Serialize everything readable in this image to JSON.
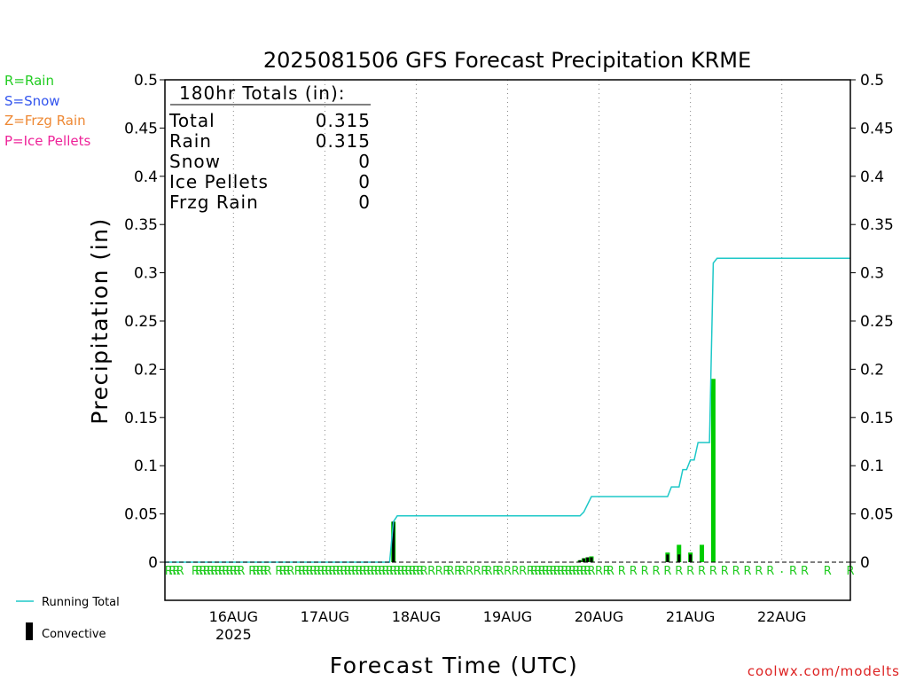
{
  "chart_data": {
    "type": "bar",
    "title": "2025081506 GFS Forecast Precipitation KRME",
    "xlabel": "Forecast Time (UTC)",
    "ylabel": "Precipitation (in)",
    "ylim": [
      0,
      0.5
    ],
    "yticks": [
      0,
      0.05,
      0.1,
      0.15,
      0.2,
      0.25,
      0.3,
      0.35,
      0.4,
      0.45,
      0.5
    ],
    "ytick_labels": [
      "0",
      "0.05",
      "0.1",
      "0.15",
      "0.2",
      "0.25",
      "0.3",
      "0.35",
      "0.4",
      "0.45",
      "0.5"
    ],
    "xlim": [
      0,
      180
    ],
    "xtick_labels": [
      {
        "label": "16AUG",
        "sublabel": "2025",
        "hour": 18
      },
      {
        "label": "17AUG",
        "hour": 42
      },
      {
        "label": "18AUG",
        "hour": 66
      },
      {
        "label": "19AUG",
        "hour": 90
      },
      {
        "label": "20AUG",
        "hour": 114
      },
      {
        "label": "21AUG",
        "hour": 138
      },
      {
        "label": "22AUG",
        "hour": 162
      }
    ],
    "grid": "vertical dotted",
    "legend_left": [
      {
        "label": "R=Rain",
        "color": "#22cc22"
      },
      {
        "label": "S=Snow",
        "color": "#3355ee"
      },
      {
        "label": "Z=Frzg Rain",
        "color": "#ee8833"
      },
      {
        "label": "P=Ice Pellets",
        "color": "#ee2299"
      }
    ],
    "legend_bottom": [
      {
        "label": "Running Total",
        "color": "#1ec8c8"
      },
      {
        "label": "Convective",
        "color": "#000000"
      }
    ],
    "totals": {
      "heading": "180hr Totals (in):",
      "rows": [
        {
          "label": "Total",
          "value": "0.315"
        },
        {
          "label": "Rain",
          "value": "0.315"
        },
        {
          "label": "Snow",
          "value": "0"
        },
        {
          "label": "Ice Pellets",
          "value": "0"
        },
        {
          "label": "Frzg Rain",
          "value": "0"
        }
      ]
    },
    "series": [
      {
        "name": "Running Total",
        "type": "line",
        "color": "#1ec8c8",
        "x": [
          0,
          59,
          60,
          61,
          76,
          109,
          110,
          112,
          125,
          132,
          133,
          135,
          136,
          137,
          138,
          139,
          140,
          141,
          142,
          143,
          144,
          145,
          180
        ],
        "y": [
          0,
          0,
          0.042,
          0.048,
          0.048,
          0.048,
          0.052,
          0.068,
          0.068,
          0.068,
          0.078,
          0.078,
          0.096,
          0.096,
          0.106,
          0.106,
          0.124,
          0.124,
          0.124,
          0.124,
          0.31,
          0.315,
          0.315
        ]
      },
      {
        "name": "Rain",
        "type": "bar",
        "color": "#00cc00",
        "x": [
          60,
          109,
          110,
          111,
          112,
          132,
          135,
          138,
          141,
          144
        ],
        "y": [
          0.042,
          0.002,
          0.004,
          0.005,
          0.006,
          0.01,
          0.018,
          0.01,
          0.018,
          0.19
        ]
      },
      {
        "name": "Convective",
        "type": "bar",
        "color": "#000000",
        "x": [
          60,
          109,
          110,
          111,
          112,
          132,
          135,
          138
        ],
        "y": [
          0.042,
          0.002,
          0.004,
          0.005,
          0.005,
          0.008,
          0.008,
          0.008
        ]
      }
    ],
    "ptype_marks": {
      "color": "#22cc22",
      "hours": [
        1,
        2,
        3,
        4,
        8,
        9,
        10,
        11,
        12,
        13,
        14,
        15,
        16,
        17,
        18,
        19,
        20,
        23,
        24,
        25,
        26,
        27,
        30,
        31,
        32,
        33,
        35,
        36,
        37,
        38,
        39,
        40,
        41,
        42,
        43,
        44,
        45,
        46,
        47,
        48,
        49,
        50,
        51,
        52,
        53,
        54,
        55,
        56,
        57,
        58,
        59,
        60,
        61,
        62,
        63,
        64,
        65,
        66,
        67,
        68,
        70,
        72,
        74,
        75,
        77,
        78,
        80,
        82,
        84,
        85,
        87,
        88,
        90,
        92,
        94,
        96,
        97,
        98,
        99,
        100,
        101,
        102,
        103,
        104,
        105,
        106,
        107,
        108,
        109,
        110,
        111,
        112,
        114,
        116,
        117,
        120,
        123,
        126,
        129,
        132,
        135,
        138,
        141,
        144,
        147,
        150,
        153,
        156,
        159,
        165,
        168,
        174,
        180
      ],
      "letter": "R",
      "dot_hour": 162
    }
  },
  "credit": "coolwx.com/modelts"
}
